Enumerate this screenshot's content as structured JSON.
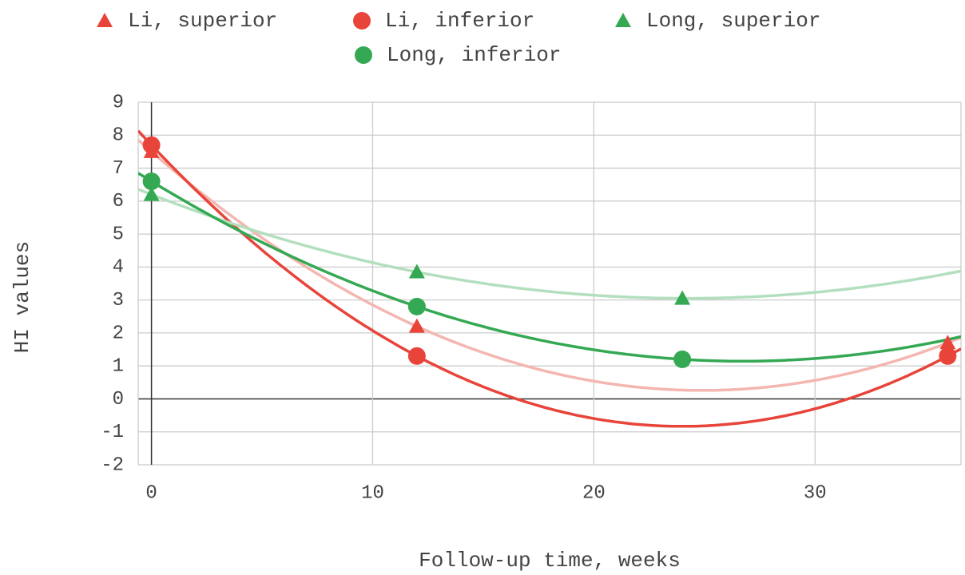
{
  "chart_data": {
    "type": "scatter",
    "x_label": "Follow-up time, weeks",
    "y_label": "HI values",
    "xlim": [
      -0.6,
      36.6
    ],
    "xticks": [
      0,
      10,
      20,
      30
    ],
    "ylim": [
      -2,
      9
    ],
    "yticks": [
      -2,
      -1,
      0,
      1,
      2,
      3,
      4,
      5,
      6,
      7,
      8,
      9
    ],
    "grid": true,
    "legend": "top",
    "series": [
      {
        "name": "Li, superior",
        "color": "#e8443a",
        "marker": "triangle",
        "x": [
          0,
          12,
          36
        ],
        "values": [
          7.5,
          2.2,
          1.7
        ],
        "trendline": {
          "degree": 2,
          "color": "#f4b6b0"
        }
      },
      {
        "name": "Li, inferior",
        "color": "#e8443a",
        "marker": "circle",
        "x": [
          0,
          12,
          36
        ],
        "values": [
          7.7,
          1.3,
          1.3
        ],
        "trendline": {
          "degree": 2,
          "color": "#e8443a"
        }
      },
      {
        "name": "Long, superior",
        "color": "#34a853",
        "marker": "triangle",
        "x": [
          0,
          12,
          24
        ],
        "values": [
          6.2,
          3.85,
          3.05
        ],
        "trendline": {
          "degree": 2,
          "color": "#b3dfbf"
        }
      },
      {
        "name": "Long, inferior",
        "color": "#34a853",
        "marker": "circle",
        "x": [
          0,
          12,
          24
        ],
        "values": [
          6.6,
          2.8,
          1.2
        ],
        "trendline": {
          "degree": 2,
          "color": "#34a853"
        }
      }
    ]
  }
}
